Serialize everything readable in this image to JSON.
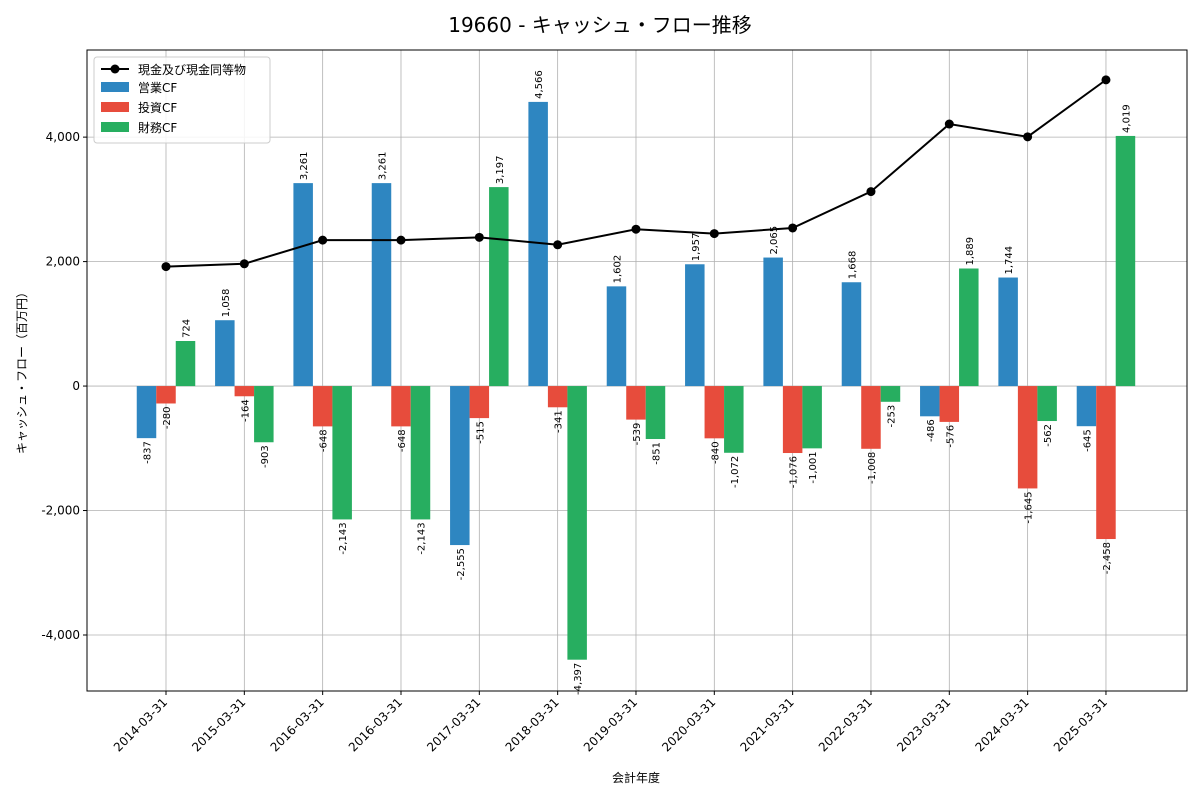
{
  "chart_data": {
    "type": "bar",
    "title": "19660 - キャッシュ・フロー推移",
    "xlabel": "会計年度",
    "ylabel": "キャッシュ・フロー（百万円）",
    "ylim": [
      -4900,
      5400
    ],
    "yticks": [
      -4000,
      -2000,
      0,
      2000,
      4000
    ],
    "ytick_labels": [
      "-4,000",
      "-2,000",
      "0",
      "2,000",
      "4,000"
    ],
    "grid": true,
    "legend_position": "top-left",
    "categories": [
      "2014-03-31",
      "2015-03-31",
      "2016-03-31",
      "2016-03-31",
      "2017-03-31",
      "2018-03-31",
      "2019-03-31",
      "2020-03-31",
      "2021-03-31",
      "2022-03-31",
      "2023-03-31",
      "2024-03-31",
      "2025-03-31"
    ],
    "series": [
      {
        "name": "営業CF",
        "kind": "bar",
        "color": "#2e86c1",
        "values": [
          -837,
          1058,
          3261,
          3261,
          -2555,
          4566,
          1602,
          1957,
          2065,
          1668,
          -486,
          1744,
          -645
        ],
        "labels": [
          "-837",
          "1,058",
          "3,261",
          "3,261",
          "-2,555",
          "4,566",
          "1,602",
          "1,957",
          "2,065",
          "1,668",
          "-486",
          "1,744",
          "-645"
        ]
      },
      {
        "name": "投資CF",
        "kind": "bar",
        "color": "#e74c3c",
        "values": [
          -280,
          -164,
          -648,
          -648,
          -515,
          -341,
          -539,
          -840,
          -1076,
          -1008,
          -576,
          -1645,
          -2458
        ],
        "labels": [
          "-280",
          "-164",
          "-648",
          "-648",
          "-515",
          "-341",
          "-539",
          "-840",
          "-1,076",
          "-1,008",
          "-576",
          "-1,645",
          "-2,458"
        ]
      },
      {
        "name": "財務CF",
        "kind": "bar",
        "color": "#27ae60",
        "values": [
          724,
          -903,
          -2143,
          -2143,
          3197,
          -4397,
          -851,
          -1072,
          -1001,
          -253,
          1889,
          -562,
          4019
        ],
        "labels": [
          "724",
          "-903",
          "-2,143",
          "-2,143",
          "3,197",
          "-4,397",
          "-851",
          "-1,072",
          "-1,001",
          "-253",
          "1,889",
          "-562",
          "4,019"
        ]
      },
      {
        "name": "現金及び現金同等物",
        "kind": "line",
        "color": "#000000",
        "values": [
          1920,
          1965,
          2345,
          2345,
          2390,
          2270,
          2520,
          2450,
          2540,
          3125,
          4210,
          4005,
          4920
        ]
      }
    ]
  }
}
